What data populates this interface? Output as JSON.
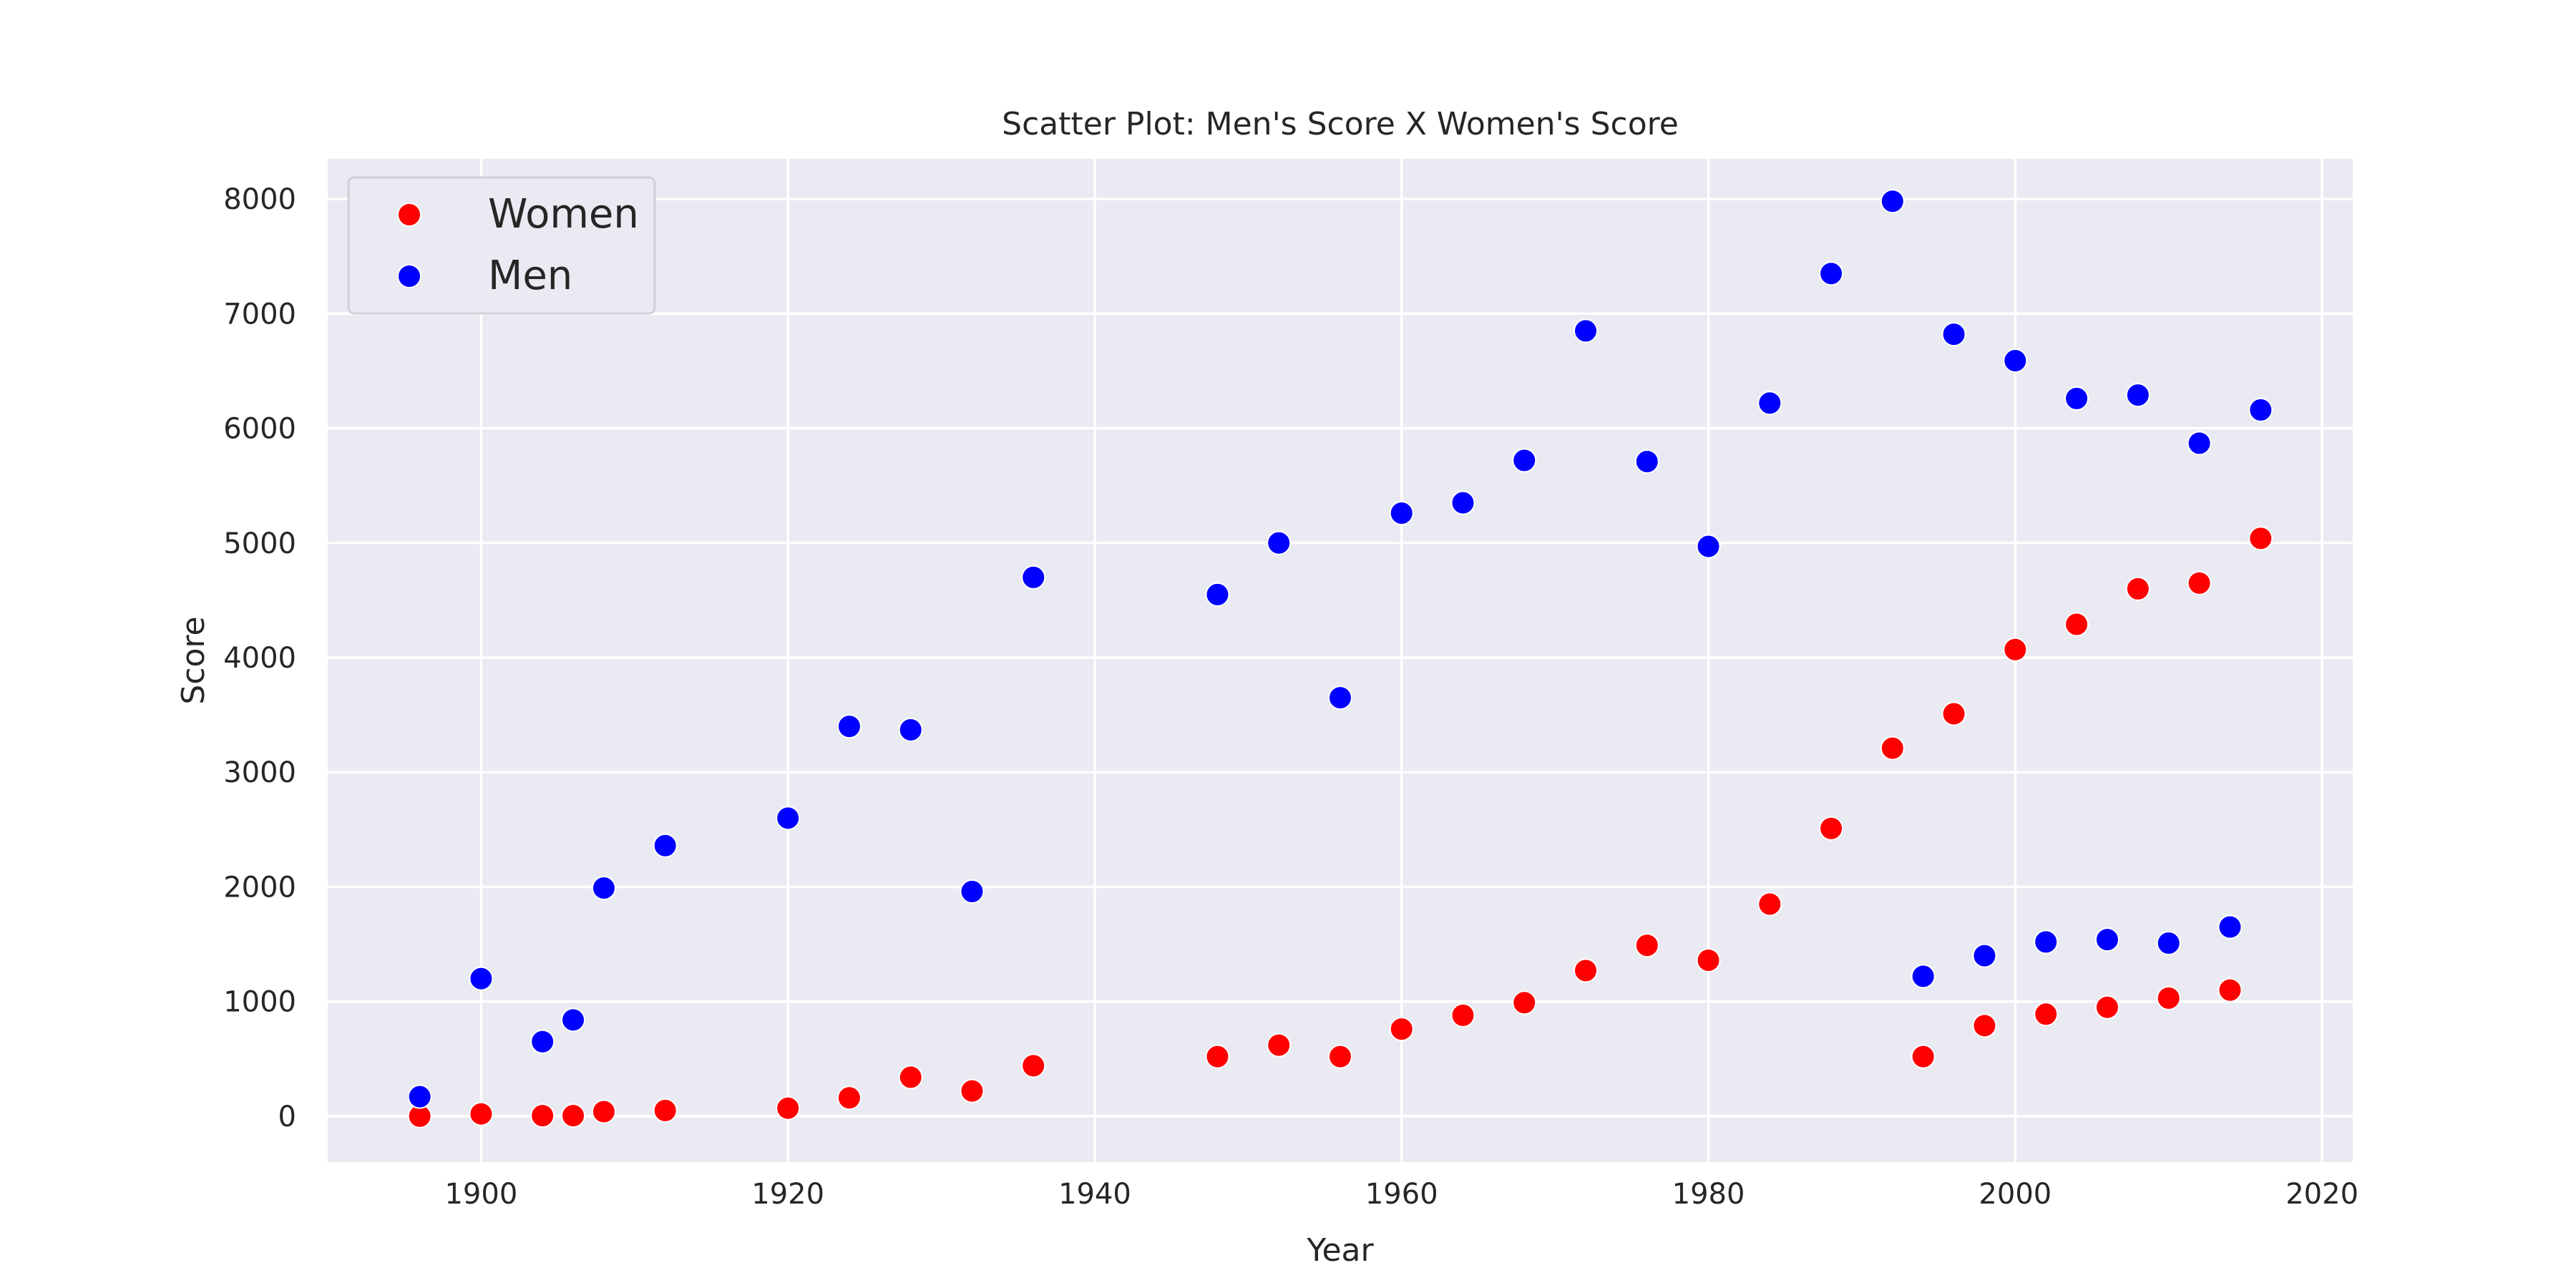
{
  "chart_data": {
    "type": "scatter",
    "title": "Scatter Plot: Men's Score X Women's Score",
    "xlabel": "Year",
    "ylabel": "Score",
    "xlim": [
      1890,
      2022
    ],
    "ylim": [
      -400,
      8350
    ],
    "xticks": [
      1900,
      1920,
      1940,
      1960,
      1980,
      2000,
      2020
    ],
    "yticks": [
      0,
      1000,
      2000,
      3000,
      4000,
      5000,
      6000,
      7000,
      8000
    ],
    "grid": true,
    "legend_position": "top-left",
    "series": [
      {
        "name": "Women",
        "color": "#ff0000",
        "x": [
          1896,
          1900,
          1904,
          1906,
          1908,
          1912,
          1920,
          1924,
          1928,
          1932,
          1936,
          1948,
          1952,
          1956,
          1960,
          1964,
          1968,
          1972,
          1976,
          1980,
          1984,
          1988,
          1992,
          1994,
          1996,
          1998,
          2000,
          2002,
          2004,
          2006,
          2008,
          2010,
          2012,
          2014,
          2016
        ],
        "y": [
          0,
          20,
          5,
          5,
          40,
          50,
          70,
          160,
          340,
          220,
          440,
          520,
          620,
          520,
          760,
          880,
          990,
          1270,
          1490,
          1360,
          1850,
          2510,
          3210,
          520,
          3510,
          790,
          4070,
          890,
          4290,
          950,
          4600,
          1030,
          4650,
          1100,
          5040
        ]
      },
      {
        "name": "Men",
        "color": "#0000ff",
        "x": [
          1896,
          1900,
          1904,
          1906,
          1908,
          1912,
          1920,
          1924,
          1928,
          1932,
          1936,
          1948,
          1952,
          1956,
          1960,
          1964,
          1968,
          1972,
          1976,
          1980,
          1984,
          1988,
          1992,
          1994,
          1996,
          1998,
          2000,
          2002,
          2004,
          2006,
          2008,
          2010,
          2012,
          2014,
          2016
        ],
        "y": [
          170,
          1200,
          650,
          840,
          1990,
          2360,
          2600,
          3400,
          3370,
          1960,
          4700,
          4550,
          5000,
          3650,
          5260,
          5350,
          5720,
          6850,
          5710,
          4970,
          6220,
          7350,
          7980,
          1220,
          6820,
          1400,
          6590,
          1520,
          6260,
          1540,
          6290,
          1510,
          5870,
          1650,
          6160
        ]
      }
    ]
  }
}
